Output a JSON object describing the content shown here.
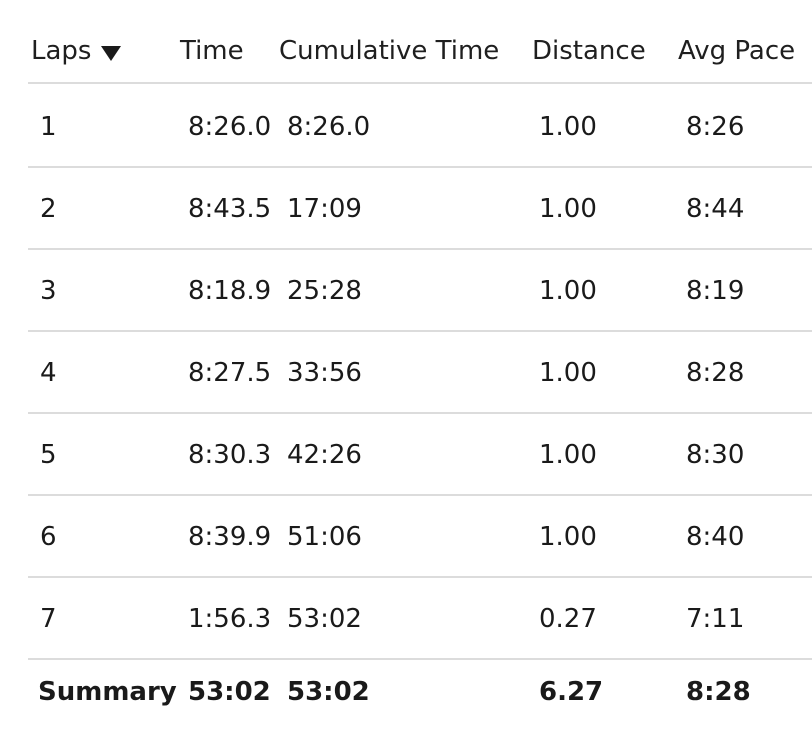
{
  "header": {
    "laps": "Laps",
    "time": "Time",
    "cumulative_time": "Cumulative Time",
    "distance": "Distance",
    "avg_pace": "Avg Pace",
    "sort_icon": "triangle-down-icon"
  },
  "rows": [
    {
      "lap": "1",
      "time": "8:26.0",
      "cumulative": "8:26.0",
      "distance": "1.00",
      "pace": "8:26"
    },
    {
      "lap": "2",
      "time": "8:43.5",
      "cumulative": "17:09",
      "distance": "1.00",
      "pace": "8:44"
    },
    {
      "lap": "3",
      "time": "8:18.9",
      "cumulative": "25:28",
      "distance": "1.00",
      "pace": "8:19"
    },
    {
      "lap": "4",
      "time": "8:27.5",
      "cumulative": "33:56",
      "distance": "1.00",
      "pace": "8:28"
    },
    {
      "lap": "5",
      "time": "8:30.3",
      "cumulative": "42:26",
      "distance": "1.00",
      "pace": "8:30"
    },
    {
      "lap": "6",
      "time": "8:39.9",
      "cumulative": "51:06",
      "distance": "1.00",
      "pace": "8:40"
    },
    {
      "lap": "7",
      "time": "1:56.3",
      "cumulative": "53:02",
      "distance": "0.27",
      "pace": "7:11"
    }
  ],
  "summary": {
    "label": "Summary",
    "time": "53:02",
    "cumulative": "53:02",
    "distance": "6.27",
    "pace": "8:28"
  },
  "colors": {
    "text": "#1a1a1a",
    "divider": "#dcdcdc",
    "background": "#ffffff"
  }
}
